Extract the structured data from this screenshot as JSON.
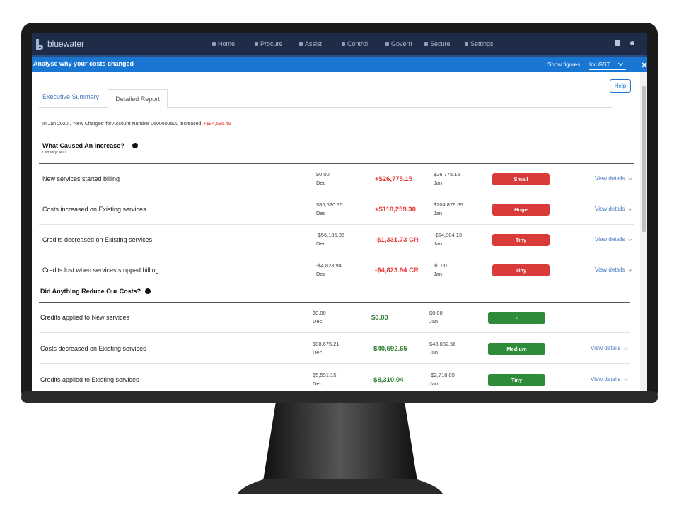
{
  "nav": {
    "brand": "bluewater",
    "items": [
      "Home",
      "Procure",
      "Assist",
      "Control",
      "Govern",
      "Secure",
      "Settings"
    ]
  },
  "banner": {
    "title": "Analyse why your costs changed",
    "figures_label": "Show figures:",
    "figures_value": "Inc GST"
  },
  "help": "Help",
  "tabs": [
    "Executive Summary",
    "Detailed Report"
  ],
  "summary": {
    "text": "In Jan 2020 , 'New Charges' for Account Number 0600600600 increased",
    "amount": "+$94,696.49"
  },
  "increase": {
    "title": "What Caused An Increase?",
    "currency": "Currency: AUD",
    "rows": [
      {
        "label": "New services started billing",
        "prev": "$0.00",
        "prev_month": "Dec",
        "change": "+$26,775.15",
        "next": "$26,775.15",
        "next_month": "Jan",
        "size": "Small",
        "link": "View details"
      },
      {
        "label": "Costs increased on Existing services",
        "prev": "$86,620.35",
        "prev_month": "Dec",
        "change": "+$118,259.30",
        "next": "$204,879.65",
        "next_month": "Jan",
        "size": "Huge",
        "link": "View details"
      },
      {
        "label": "Credits decreased on Existing services",
        "prev": "-$56,135.86",
        "prev_month": "Dec",
        "change": "-$1,331.73 CR",
        "next": "-$54,804.13",
        "next_month": "Jan",
        "size": "Tiny",
        "link": "View details"
      },
      {
        "label": "Credits lost when services stopped billing",
        "prev": "-$4,823.94",
        "prev_month": "Dec",
        "change": "-$4,823.94 CR",
        "next": "$0.00",
        "next_month": "Jan",
        "size": "Tiny",
        "link": "View details"
      }
    ]
  },
  "reduce": {
    "title": "Did Anything Reduce Our Costs?",
    "rows": [
      {
        "label": "Credits applied to New services",
        "prev": "$0.00",
        "prev_month": "Dec",
        "change": "$0.00",
        "next": "$0.00",
        "next_month": "Jan",
        "size": "-"
      },
      {
        "label": "Costs decreased on Existing services",
        "prev": "$88,675.21",
        "prev_month": "Dec",
        "change": "-$40,592.65",
        "next": "$48,082.56",
        "next_month": "Jan",
        "size": "Medium",
        "link": "View details"
      },
      {
        "label": "Credits applied to Existing services",
        "prev": "$5,591.15",
        "prev_month": "Dec",
        "change": "-$8,310.04",
        "next": "-$2,718.89",
        "next_month": "Jan",
        "size": "Tiny",
        "link": "View details"
      }
    ]
  }
}
